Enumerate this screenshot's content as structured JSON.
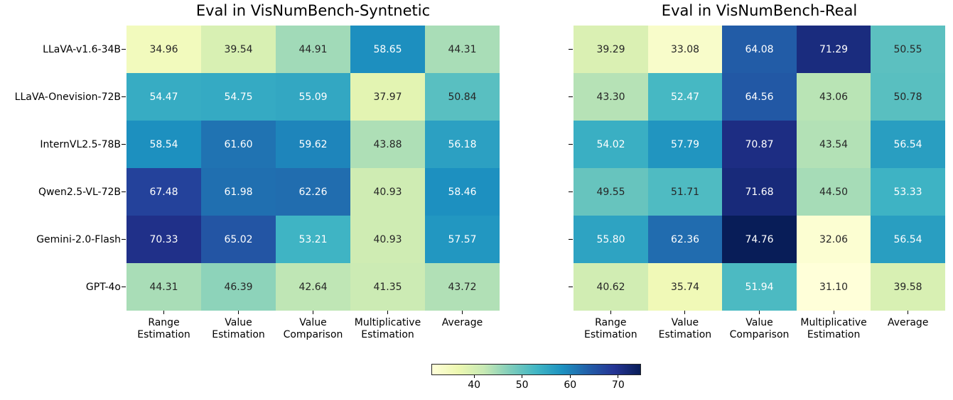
{
  "chart_data": {
    "type": "heatmap",
    "colormap": "YlGnBu",
    "colormap_stops": [
      "#ffffd9",
      "#edf8b1",
      "#c7e9b4",
      "#7fcdbb",
      "#41b6c4",
      "#1d91c0",
      "#225ea8",
      "#253494",
      "#081d58"
    ],
    "vmin": 31.1,
    "vmax": 74.76,
    "rows": [
      "LLaVA-v1.6-34B",
      "LLaVA-Onevision-72B",
      "InternVL2.5-78B",
      "Qwen2.5-VL-72B",
      "Gemini-2.0-Flash",
      "GPT-4o"
    ],
    "columns": [
      "Range\nEstimation",
      "Value\nEstimation",
      "Value\nComparison",
      "Multiplicative\nEstimation",
      "Average"
    ],
    "panels": [
      {
        "title": "Eval in VisNumBench-Syntnetic",
        "values": [
          [
            34.96,
            39.54,
            44.91,
            58.65,
            44.31
          ],
          [
            54.47,
            54.75,
            55.09,
            37.97,
            50.84
          ],
          [
            58.54,
            61.6,
            59.62,
            43.88,
            56.18
          ],
          [
            67.48,
            61.98,
            62.26,
            40.93,
            58.46
          ],
          [
            70.33,
            65.02,
            53.21,
            40.93,
            57.57
          ],
          [
            44.31,
            46.39,
            42.64,
            41.35,
            43.72
          ]
        ]
      },
      {
        "title": "Eval in VisNumBench-Real",
        "values": [
          [
            39.29,
            33.08,
            64.08,
            71.29,
            50.55
          ],
          [
            43.3,
            52.47,
            64.56,
            43.06,
            50.78
          ],
          [
            54.02,
            57.79,
            70.87,
            43.54,
            56.54
          ],
          [
            49.55,
            51.71,
            71.68,
            44.5,
            53.33
          ],
          [
            55.8,
            62.36,
            74.76,
            32.06,
            56.54
          ],
          [
            40.62,
            35.74,
            51.94,
            31.1,
            39.58
          ]
        ]
      }
    ],
    "colorbar": {
      "ticks": [
        40,
        50,
        60,
        70
      ]
    },
    "annotation_text_colors": {
      "dark": "#262626",
      "light": "#ffffff"
    }
  }
}
